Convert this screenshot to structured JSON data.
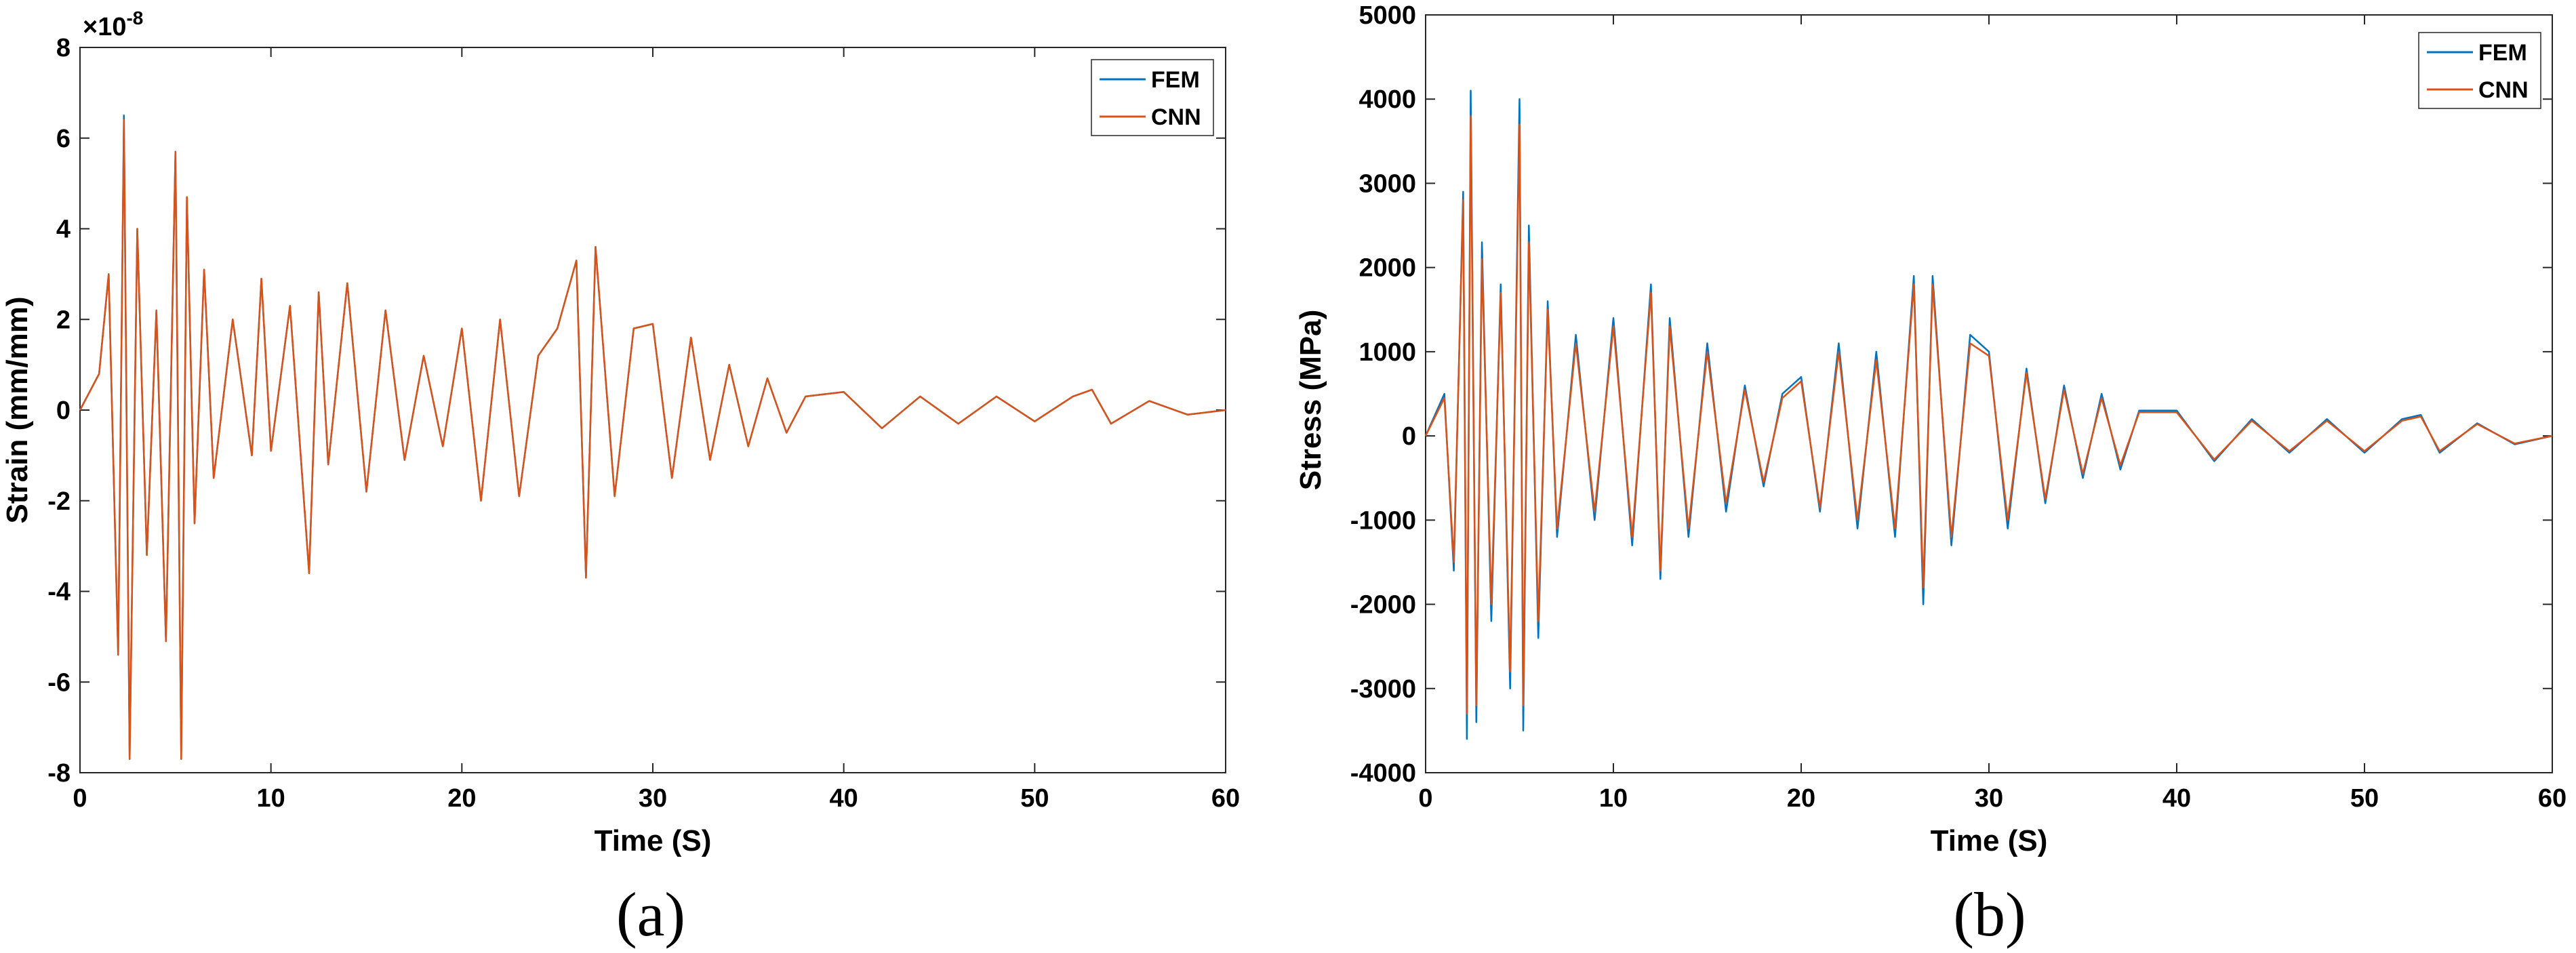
{
  "chart_data": [
    {
      "type": "line",
      "panel": "(a)",
      "xlabel": "Time (S)",
      "ylabel": "Strain (mm/mm)",
      "y_exponent": "-8",
      "xlim": [
        0,
        60
      ],
      "ylim": [
        -8,
        8
      ],
      "xticks": [
        0,
        10,
        20,
        30,
        40,
        50,
        60
      ],
      "yticks": [
        -8,
        -6,
        -4,
        -2,
        0,
        2,
        4,
        6,
        8
      ],
      "legend_position": "top-right",
      "grid": false,
      "series": [
        {
          "name": "FEM",
          "color": "#0072BD",
          "x": [
            0,
            1,
            1.5,
            2,
            2.3,
            2.6,
            3,
            3.5,
            4,
            4.5,
            5,
            5.3,
            5.6,
            6,
            6.5,
            7,
            8,
            9,
            9.5,
            10,
            11,
            12,
            12.5,
            13,
            14,
            15,
            16,
            17,
            18,
            19,
            20,
            21,
            22,
            23,
            24,
            25,
            26,
            26.5,
            27,
            28,
            29,
            30,
            31,
            32,
            33,
            34,
            35,
            36,
            37,
            38,
            40,
            42,
            44,
            46,
            48,
            50,
            52,
            53,
            54,
            56,
            58,
            60
          ],
          "y": [
            0,
            0.8,
            3.0,
            -5.4,
            6.5,
            -7.7,
            4.0,
            -3.2,
            2.2,
            -5.1,
            5.7,
            -7.7,
            4.7,
            -2.5,
            3.1,
            -1.5,
            2.0,
            -1.0,
            2.9,
            -0.9,
            2.3,
            -3.6,
            2.6,
            -1.2,
            2.8,
            -1.8,
            2.2,
            -1.1,
            1.2,
            -0.8,
            1.8,
            -2.0,
            2.0,
            -1.9,
            1.2,
            1.8,
            3.3,
            -3.7,
            3.6,
            -1.9,
            1.8,
            1.9,
            -1.5,
            1.6,
            -1.1,
            1.0,
            -0.8,
            0.7,
            -0.5,
            0.3,
            0.4,
            -0.4,
            0.3,
            -0.3,
            0.3,
            -0.25,
            0.3,
            0.45,
            -0.3,
            0.2,
            -0.1,
            0
          ]
        },
        {
          "name": "CNN",
          "color": "#D95319",
          "x": [
            0,
            1,
            1.5,
            2,
            2.3,
            2.6,
            3,
            3.5,
            4,
            4.5,
            5,
            5.3,
            5.6,
            6,
            6.5,
            7,
            8,
            9,
            9.5,
            10,
            11,
            12,
            12.5,
            13,
            14,
            15,
            16,
            17,
            18,
            19,
            20,
            21,
            22,
            23,
            24,
            25,
            26,
            26.5,
            27,
            28,
            29,
            30,
            31,
            32,
            33,
            34,
            35,
            36,
            37,
            38,
            40,
            42,
            44,
            46,
            48,
            50,
            52,
            53,
            54,
            56,
            58,
            60
          ],
          "y": [
            0,
            0.8,
            3.0,
            -5.4,
            6.4,
            -7.7,
            4.0,
            -3.2,
            2.2,
            -5.1,
            5.7,
            -7.7,
            4.7,
            -2.5,
            3.1,
            -1.5,
            2.0,
            -1.0,
            2.9,
            -0.9,
            2.3,
            -3.6,
            2.6,
            -1.2,
            2.8,
            -1.8,
            2.2,
            -1.1,
            1.2,
            -0.8,
            1.8,
            -2.0,
            2.0,
            -1.9,
            1.2,
            1.8,
            3.3,
            -3.7,
            3.6,
            -1.9,
            1.8,
            1.9,
            -1.5,
            1.6,
            -1.1,
            1.0,
            -0.8,
            0.7,
            -0.5,
            0.3,
            0.4,
            -0.4,
            0.3,
            -0.3,
            0.3,
            -0.25,
            0.3,
            0.45,
            -0.3,
            0.2,
            -0.1,
            0
          ]
        }
      ]
    },
    {
      "type": "line",
      "panel": "(b)",
      "xlabel": "Time (S)",
      "ylabel": "Stress (MPa)",
      "xlim": [
        0,
        60
      ],
      "ylim": [
        -4000,
        5000
      ],
      "xticks": [
        0,
        10,
        20,
        30,
        40,
        50,
        60
      ],
      "yticks": [
        -4000,
        -3000,
        -2000,
        -1000,
        0,
        1000,
        2000,
        3000,
        4000,
        5000
      ],
      "legend_position": "top-right",
      "grid": false,
      "series": [
        {
          "name": "FEM",
          "color": "#0072BD",
          "x": [
            0,
            1,
            1.5,
            2,
            2.2,
            2.4,
            2.7,
            3,
            3.5,
            4,
            4.5,
            5,
            5.2,
            5.5,
            6,
            6.5,
            7,
            8,
            9,
            10,
            11,
            12,
            12.5,
            13,
            14,
            15,
            16,
            17,
            18,
            19,
            20,
            21,
            22,
            23,
            24,
            25,
            26,
            26.5,
            27,
            28,
            29,
            30,
            31,
            32,
            33,
            34,
            35,
            36,
            37,
            38,
            40,
            42,
            44,
            46,
            48,
            50,
            52,
            53,
            54,
            56,
            58,
            60
          ],
          "y": [
            0,
            500,
            -1600,
            2900,
            -3600,
            4100,
            -3400,
            2300,
            -2200,
            1800,
            -3000,
            4000,
            -3500,
            2500,
            -2400,
            1600,
            -1200,
            1200,
            -1000,
            1400,
            -1300,
            1800,
            -1700,
            1400,
            -1200,
            1100,
            -900,
            600,
            -600,
            500,
            700,
            -900,
            1100,
            -1100,
            1000,
            -1200,
            1900,
            -2000,
            1900,
            -1300,
            1200,
            1000,
            -1100,
            800,
            -800,
            600,
            -500,
            500,
            -400,
            300,
            300,
            -300,
            200,
            -200,
            200,
            -200,
            200,
            250,
            -200,
            150,
            -100,
            0
          ]
        },
        {
          "name": "CNN",
          "color": "#D95319",
          "x": [
            0,
            1,
            1.5,
            2,
            2.2,
            2.4,
            2.7,
            3,
            3.5,
            4,
            4.5,
            5,
            5.2,
            5.5,
            6,
            6.5,
            7,
            8,
            9,
            10,
            11,
            12,
            12.5,
            13,
            14,
            15,
            16,
            17,
            18,
            19,
            20,
            21,
            22,
            23,
            24,
            25,
            26,
            26.5,
            27,
            28,
            29,
            30,
            31,
            32,
            33,
            34,
            35,
            36,
            37,
            38,
            40,
            42,
            44,
            46,
            48,
            50,
            52,
            53,
            54,
            56,
            58,
            60
          ],
          "y": [
            0,
            450,
            -1500,
            2800,
            -3300,
            3800,
            -3200,
            2100,
            -2000,
            1700,
            -2800,
            3700,
            -3200,
            2300,
            -2200,
            1500,
            -1100,
            1100,
            -900,
            1300,
            -1200,
            1700,
            -1600,
            1300,
            -1100,
            1000,
            -800,
            550,
            -550,
            450,
            650,
            -850,
            1000,
            -1000,
            900,
            -1100,
            1800,
            -1800,
            1800,
            -1200,
            1100,
            950,
            -1000,
            750,
            -750,
            550,
            -450,
            450,
            -350,
            280,
            280,
            -280,
            180,
            -180,
            180,
            -180,
            180,
            230,
            -180,
            140,
            -90,
            0
          ]
        }
      ]
    }
  ]
}
